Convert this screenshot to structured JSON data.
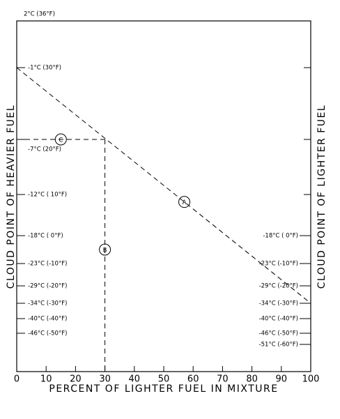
{
  "chart_data": {
    "type": "line",
    "xlabel": "PERCENT OF LIGHTER FUEL IN MIXTURE",
    "ylabel": "CLOUD POINT OF HEAVIER FUEL",
    "y2label": "CLOUD POINT OF LIGHTER FUEL",
    "xlim": [
      0,
      100
    ],
    "xticks": [
      0,
      10,
      20,
      30,
      40,
      50,
      60,
      70,
      80,
      90,
      100
    ],
    "yticks": [
      {
        "value": 36,
        "label": "2°C (36°F)"
      },
      {
        "value": 30,
        "label": "-1°C (30°F)"
      },
      {
        "value": 20,
        "label": "-7°C (20°F)"
      },
      {
        "value": 10,
        "label": "-12°C ( 10°F)"
      },
      {
        "value": 0,
        "label": "-18°C ( 0°F)"
      },
      {
        "value": -10,
        "label": "-23°C (-10°F)"
      },
      {
        "value": -20,
        "label": "-29°C (-20°F)"
      },
      {
        "value": -30,
        "label": "-34°C (-30°F)"
      },
      {
        "value": -40,
        "label": "-40°C (-40°F)"
      },
      {
        "value": -50,
        "label": "-46°C (-50°F)"
      }
    ],
    "y2ticks": [
      {
        "value": 0,
        "label": "-18°C ( 0°F)"
      },
      {
        "value": -10,
        "label": "-23°C (-10°F)"
      },
      {
        "value": -20,
        "label": "-29°C (-20°F)"
      },
      {
        "value": -30,
        "label": "-34°C (-30°F)"
      },
      {
        "value": -40,
        "label": "-40°C (-40°F)"
      },
      {
        "value": -50,
        "label": "-46°C (-50°F)"
      },
      {
        "value": -60,
        "label": "-51°C (-60°F)"
      }
    ],
    "series": [
      {
        "name": "A",
        "x": [
          0,
          100
        ],
        "values": [
          30,
          -30
        ]
      }
    ],
    "reading": {
      "x": 30,
      "value": 20,
      "x_guide_label": "B",
      "y_guide_label": "C"
    }
  }
}
